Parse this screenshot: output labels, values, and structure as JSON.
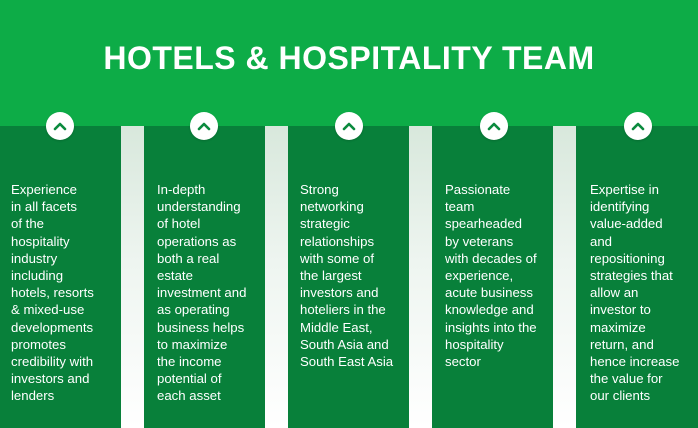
{
  "header": {
    "title": "HOTELS & HOSPITALITY TEAM",
    "background_color": "#0dac47"
  },
  "panels": [
    {
      "icon": "chevron-up-icon",
      "text": "Experience\n in all facets\nof the\nhospitality\nindustry\nincluding\nhotels, resorts\n& mixed-use\ndevelopments\npromotes\ncredibility with\ninvestors and\nlenders"
    },
    {
      "icon": "chevron-up-icon",
      "text": "In-depth\nunderstanding\nof hotel\noperations as\nboth a real\nestate\ninvestment and\nas operating\nbusiness helps\nto maximize\nthe income\npotential of\neach asset"
    },
    {
      "icon": "chevron-up-icon",
      "text": "Strong\nnetworking\nstrategic\nrelationships\nwith some of\nthe largest\ninvestors and\nhoteliers in the\nMiddle East,\nSouth Asia and\nSouth East Asia"
    },
    {
      "icon": "chevron-up-icon",
      "text": "Passionate\nteam\nspearheaded\nby veterans\nwith decades of\nexperience,\nacute business\nknowledge and\ninsights into the\nhospitality\nsector"
    },
    {
      "icon": "chevron-up-icon",
      "text": "Expertise in\nidentifying\nvalue-added\nand\nrepositioning\nstrategies that\nallow an\ninvestor to\nmaximize\nreturn, and\nhence increase\nthe value for\nour clients"
    }
  ],
  "colors": {
    "panel": "#08803a",
    "accent": "#0dac47",
    "text": "#ffffff"
  }
}
